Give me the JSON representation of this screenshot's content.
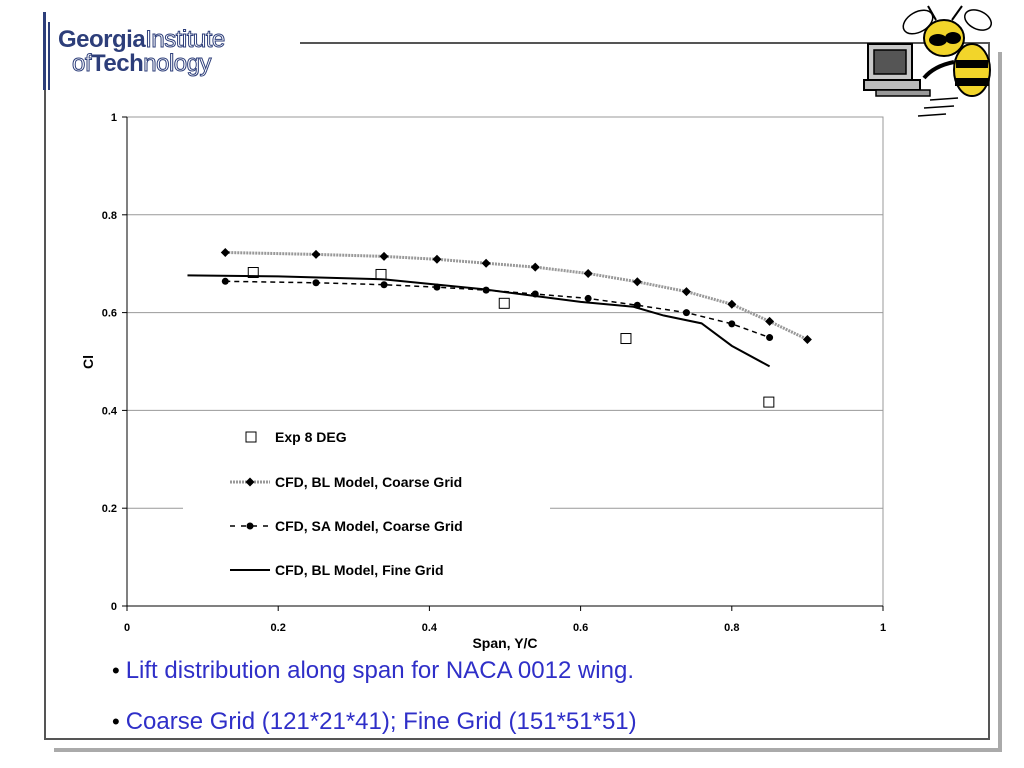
{
  "logo": {
    "line1_bold": "Georgia",
    "line1_light": "Institute",
    "line2_light_a": "of",
    "line2_bold": "Tech",
    "line2_light_b": "nology"
  },
  "colors": {
    "bullet_text": "#2f2fc8",
    "frame": "#555555",
    "logo": "#2d3e7a"
  },
  "mascot": {
    "icon": "yellow-jacket-at-computer-icon"
  },
  "chart_data": {
    "type": "line",
    "xlabel": "Span, Y/C",
    "ylabel": "Cl",
    "xlim": [
      0,
      1
    ],
    "ylim": [
      0,
      1
    ],
    "xticks": [
      "0",
      "0.2",
      "0.4",
      "0.6",
      "0.8",
      "1"
    ],
    "yticks": [
      "0",
      "0.2",
      "0.4",
      "0.6",
      "0.8",
      "1"
    ],
    "grid": "horizontal",
    "legend_position": "lower-middle",
    "series": [
      {
        "name": "Exp  8 DEG",
        "style": "open-square",
        "color": "#000000",
        "x": [
          0.167,
          0.336,
          0.499,
          0.66,
          0.849
        ],
        "y": [
          0.682,
          0.678,
          0.619,
          0.547,
          0.417
        ]
      },
      {
        "name": "CFD, BL Model, Coarse Grid",
        "style": "dotted-diamond",
        "color": "#000000",
        "x": [
          0.13,
          0.25,
          0.34,
          0.41,
          0.475,
          0.54,
          0.61,
          0.675,
          0.74,
          0.8,
          0.85,
          0.9
        ],
        "y": [
          0.723,
          0.719,
          0.715,
          0.709,
          0.701,
          0.693,
          0.68,
          0.663,
          0.643,
          0.617,
          0.582,
          0.545
        ]
      },
      {
        "name": "CFD, SA Model, Coarse Grid",
        "style": "dashed-circle",
        "color": "#000000",
        "x": [
          0.13,
          0.25,
          0.34,
          0.41,
          0.475,
          0.54,
          0.61,
          0.675,
          0.74,
          0.8,
          0.85
        ],
        "y": [
          0.664,
          0.661,
          0.657,
          0.652,
          0.646,
          0.638,
          0.629,
          0.615,
          0.6,
          0.577,
          0.549
        ]
      },
      {
        "name": "CFD, BL Model,  Fine Grid",
        "style": "solid",
        "color": "#000000",
        "x": [
          0.08,
          0.2,
          0.34,
          0.47,
          0.6,
          0.67,
          0.71,
          0.76,
          0.8,
          0.85
        ],
        "y": [
          0.676,
          0.674,
          0.668,
          0.648,
          0.622,
          0.612,
          0.594,
          0.578,
          0.532,
          0.49
        ]
      }
    ]
  },
  "bullets": [
    "Lift distribution along span for NACA 0012 wing.",
    "Coarse Grid (121*21*41); Fine Grid (151*51*51)"
  ]
}
